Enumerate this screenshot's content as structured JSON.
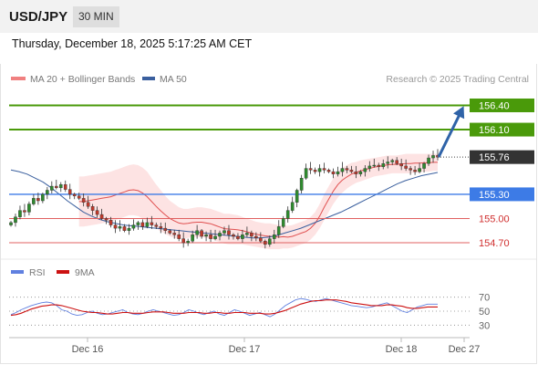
{
  "header": {
    "symbol": "USD/JPY",
    "timeframe": "30 MIN",
    "datetime": "Thursday, December 18, 2025 5:17:25 AM CET"
  },
  "colors": {
    "candle_up": "#2e8b2e",
    "candle_down": "#c0392b",
    "ma20": "#e05050",
    "bollinger_fill": "#fcd9d9",
    "ma50": "#3a5f9e",
    "resistance": "#4a9a0a",
    "pivot": "#3d7be6",
    "support": "#e06060",
    "current_price": "#333333",
    "rsi": "#6080e0",
    "rsi_ma": "#cc1111",
    "arrow": "#2f63a8"
  },
  "chart_data": [
    {
      "type": "candlestick",
      "title": "",
      "legend": [
        {
          "name": "MA 20 + Bollinger Bands",
          "color": "#f08080"
        },
        {
          "name": "MA 50",
          "color": "#3a5f9e"
        }
      ],
      "legend_position": "top-left",
      "source": "Research © 2025 Trading Central",
      "ylim": [
        154.52,
        156.62
      ],
      "x_ticks": [
        "Dec 16",
        "Dec 17",
        "Dec 18",
        "Dec 27"
      ],
      "price_levels": [
        {
          "label": "156.40",
          "value": 156.4,
          "kind": "resistance"
        },
        {
          "label": "156.10",
          "value": 156.1,
          "kind": "resistance"
        },
        {
          "label": "155.76",
          "value": 155.76,
          "kind": "current"
        },
        {
          "label": "155.30",
          "value": 155.3,
          "kind": "pivot"
        },
        {
          "label": "155.00",
          "value": 155.0,
          "kind": "support"
        },
        {
          "label": "154.70",
          "value": 154.7,
          "kind": "support"
        }
      ],
      "projection": {
        "from": 155.76,
        "to": 156.4
      },
      "close": [
        154.95,
        155.02,
        155.1,
        155.08,
        155.18,
        155.25,
        155.22,
        155.3,
        155.35,
        155.4,
        155.38,
        155.42,
        155.36,
        155.3,
        155.28,
        155.25,
        155.2,
        155.15,
        155.1,
        155.05,
        155.0,
        154.98,
        154.92,
        154.88,
        154.9,
        154.85,
        154.88,
        154.92,
        154.95,
        154.9,
        154.95,
        154.92,
        154.9,
        154.88,
        154.85,
        154.82,
        154.8,
        154.75,
        154.7,
        154.72,
        154.8,
        154.85,
        154.78,
        154.8,
        154.75,
        154.78,
        154.82,
        154.85,
        154.8,
        154.78,
        154.75,
        154.8,
        154.82,
        154.78,
        154.76,
        154.72,
        154.68,
        154.75,
        154.8,
        154.9,
        155.0,
        155.1,
        155.2,
        155.35,
        155.5,
        155.62,
        155.6,
        155.58,
        155.62,
        155.6,
        155.58,
        155.55,
        155.58,
        155.62,
        155.6,
        155.58,
        155.55,
        155.58,
        155.62,
        155.65,
        155.66,
        155.64,
        155.68,
        155.7,
        155.72,
        155.68,
        155.65,
        155.62,
        155.6,
        155.58,
        155.62,
        155.68,
        155.75,
        155.78,
        155.76
      ],
      "bb_upper": [
        155.52,
        155.52,
        155.53,
        155.54,
        155.55,
        155.56,
        155.57,
        155.58,
        155.6,
        155.62,
        155.64,
        155.66,
        155.67,
        155.66,
        155.63,
        155.58,
        155.5,
        155.42,
        155.35,
        155.28,
        155.22,
        155.18,
        155.14,
        155.12,
        155.12,
        155.13,
        155.14,
        155.14,
        155.13,
        155.12,
        155.1,
        155.08,
        155.06,
        155.06,
        155.05,
        155.04,
        155.02,
        155.0,
        154.98,
        154.96,
        154.95,
        154.94,
        154.94,
        154.93,
        154.92,
        154.92,
        154.91,
        154.92,
        154.94,
        154.96,
        154.98,
        155.02,
        155.08,
        155.18,
        155.3,
        155.4,
        155.5,
        155.58,
        155.63,
        155.66,
        155.69,
        155.7,
        155.72,
        155.73,
        155.74,
        155.75,
        155.76,
        155.77,
        155.78,
        155.78,
        155.78,
        155.79,
        155.8,
        155.8,
        155.8,
        155.8,
        155.8,
        155.8,
        155.8,
        155.8
      ],
      "bb_lower": [
        154.9,
        154.9,
        154.91,
        154.92,
        154.93,
        154.94,
        154.95,
        154.96,
        154.98,
        155.0,
        155.02,
        155.04,
        155.04,
        155.03,
        155.0,
        154.96,
        154.92,
        154.88,
        154.84,
        154.81,
        154.78,
        154.76,
        154.75,
        154.75,
        154.76,
        154.77,
        154.77,
        154.77,
        154.76,
        154.75,
        154.73,
        154.71,
        154.69,
        154.68,
        154.68,
        154.68,
        154.68,
        154.67,
        154.66,
        154.65,
        154.64,
        154.63,
        154.62,
        154.62,
        154.62,
        154.63,
        154.63,
        154.64,
        154.66,
        154.68,
        154.7,
        154.74,
        154.8,
        154.88,
        154.98,
        155.08,
        155.18,
        155.26,
        155.32,
        155.37,
        155.41,
        155.44,
        155.46,
        155.48,
        155.5,
        155.52,
        155.53,
        155.54,
        155.55,
        155.56,
        155.56,
        155.56,
        155.56,
        155.56,
        155.57,
        155.57,
        155.58,
        155.58,
        155.59,
        155.59
      ],
      "ma50": [
        155.6,
        155.58,
        155.55,
        155.5,
        155.45,
        155.38,
        155.3,
        155.22,
        155.15,
        155.08,
        155.03,
        154.99,
        154.96,
        154.94,
        154.92,
        154.91,
        154.9,
        154.89,
        154.88,
        154.87,
        154.86,
        154.85,
        154.84,
        154.83,
        154.82,
        154.81,
        154.8,
        154.79,
        154.78,
        154.77,
        154.76,
        154.76,
        154.77,
        154.79,
        154.82,
        154.85,
        154.88,
        154.92,
        154.96,
        155.0,
        155.04,
        155.08,
        155.13,
        155.18,
        155.23,
        155.28,
        155.33,
        155.38,
        155.43,
        155.47,
        155.5,
        155.53,
        155.55,
        155.57
      ]
    },
    {
      "type": "line",
      "title": "",
      "legend": [
        {
          "name": "RSI",
          "color": "#6080e0"
        },
        {
          "name": "9MA",
          "color": "#cc1111"
        }
      ],
      "legend_position": "top-left",
      "ylim": [
        20,
        80
      ],
      "y_ticks": [
        30,
        50,
        70
      ],
      "series": [
        {
          "name": "RSI",
          "values": [
            45,
            48,
            52,
            55,
            58,
            60,
            62,
            63,
            62,
            58,
            52,
            50,
            46,
            44,
            45,
            48,
            50,
            47,
            45,
            46,
            48,
            50,
            52,
            48,
            46,
            45,
            47,
            50,
            52,
            50,
            48,
            46,
            44,
            45,
            48,
            52,
            50,
            47,
            45,
            48,
            50,
            46,
            44,
            48,
            52,
            50,
            47,
            44,
            46,
            48,
            45,
            42,
            46,
            52,
            58,
            62,
            66,
            68,
            67,
            65,
            64,
            66,
            68,
            66,
            64,
            62,
            60,
            58,
            57,
            56,
            55,
            56,
            58,
            60,
            62,
            58,
            54,
            50,
            48,
            52,
            56,
            58,
            60,
            60,
            60
          ]
        },
        {
          "name": "9MA",
          "values": [
            44,
            45,
            47,
            50,
            53,
            55,
            57,
            58,
            59,
            59,
            58,
            56,
            54,
            52,
            50,
            49,
            48,
            48,
            47,
            46,
            46,
            47,
            48,
            48,
            47,
            47,
            47,
            48,
            49,
            49,
            49,
            48,
            47,
            47,
            47,
            48,
            48,
            48,
            47,
            47,
            48,
            48,
            47,
            47,
            48,
            48,
            48,
            47,
            47,
            47,
            46,
            46,
            47,
            49,
            51,
            54,
            57,
            60,
            62,
            64,
            65,
            65,
            66,
            66,
            66,
            65,
            64,
            62,
            61,
            60,
            59,
            58,
            58,
            58,
            59,
            59,
            58,
            57,
            55,
            54,
            54,
            55,
            56,
            56,
            56
          ]
        }
      ]
    }
  ]
}
